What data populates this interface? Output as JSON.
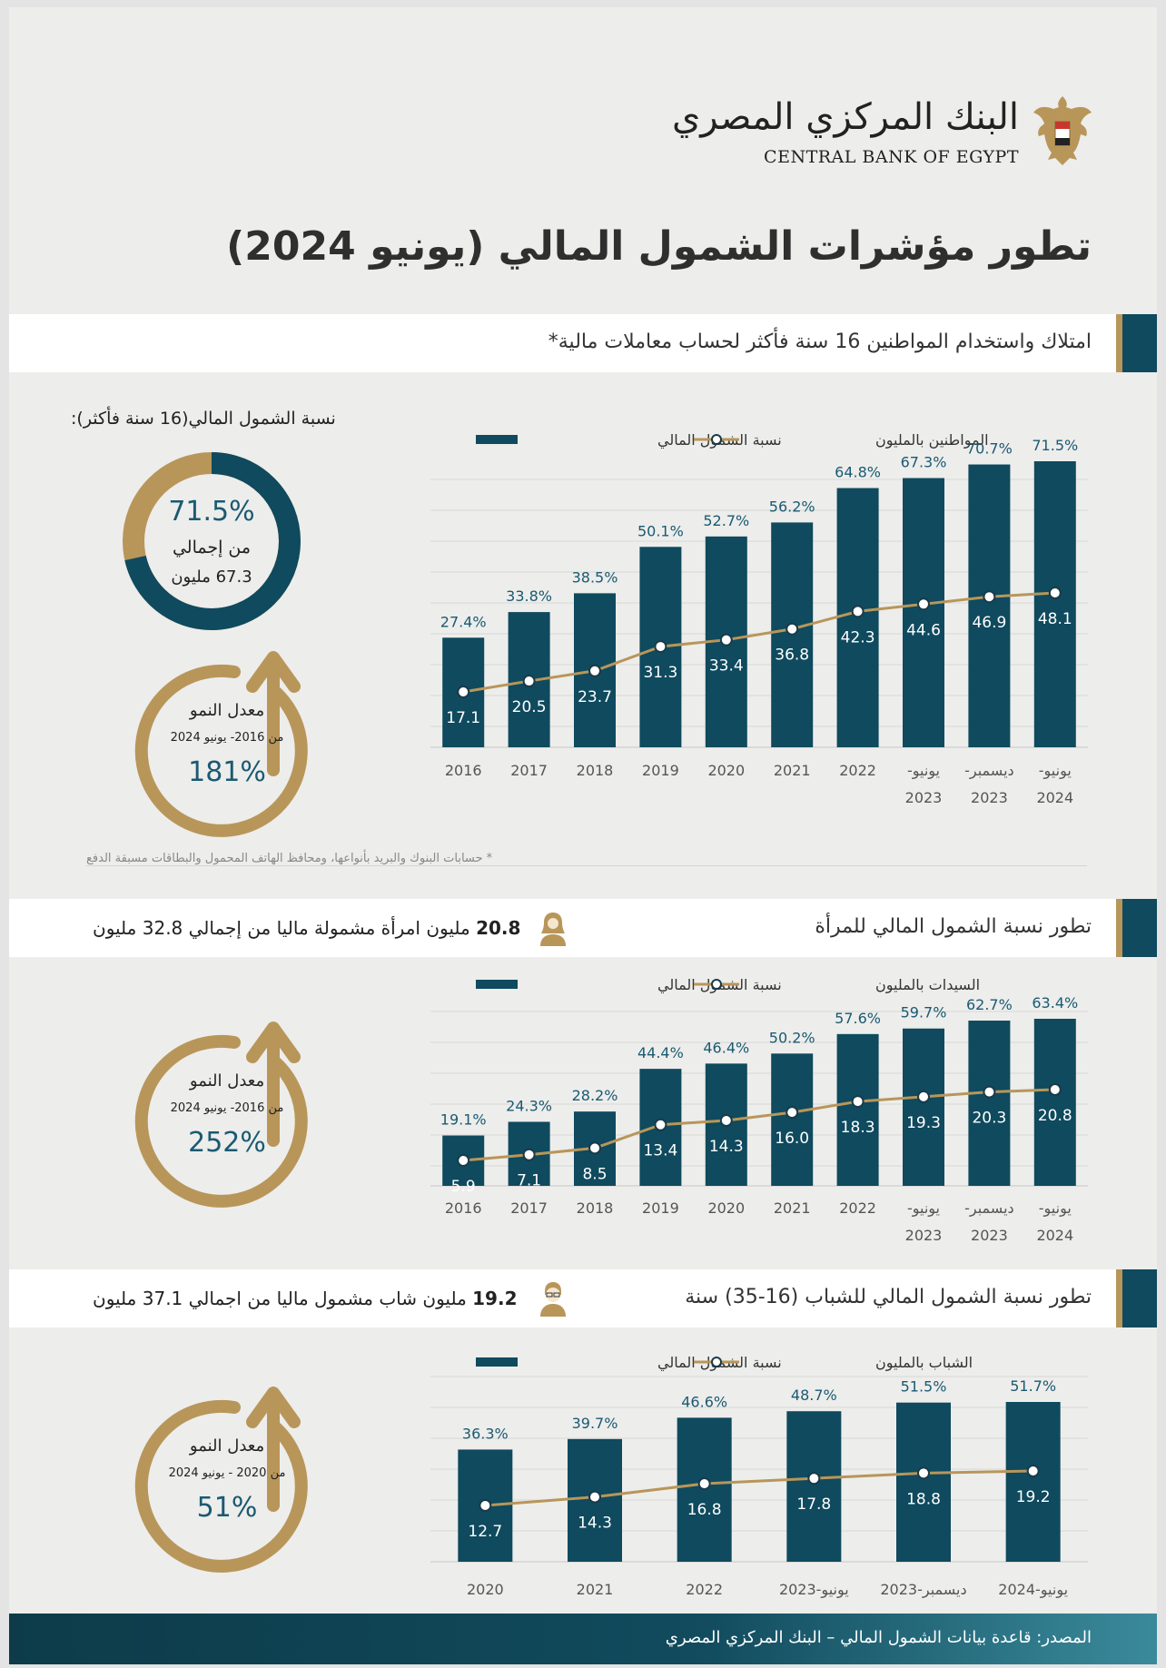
{
  "header": {
    "logo_ar": "البنك المركزي المصري",
    "logo_en": "CENTRAL BANK OF EGYPT",
    "title": "تطور مؤشرات الشمول المالي (يونيو 2024)"
  },
  "section1": {
    "title": "امتلاك واستخدام المواطنين 16 سنة فأكثر لحساب معاملات مالية*",
    "donut_title": "نسبة الشمول المالي(16 سنة فأكثر):",
    "donut_value": "71.5%",
    "donut_fraction": 0.715,
    "donut_line1": "من إجمالي",
    "donut_line2": "67.3 مليون",
    "growth_label": "معدل النمو",
    "growth_period": "من 2016- يونيو 2024",
    "growth_value": "181%",
    "footnote": "* حسابات البنوك والبريد بأنواعها، ومحافظ الهاتف المحمول والبطاقات مسبقة الدفع"
  },
  "section2": {
    "title": "تطور نسبة الشمول المالي للمرأة",
    "summary_bold": "20.8",
    "summary_text": " مليون امرأة مشمولة ماليا من إجمالي 32.8 مليون",
    "growth_label": "معدل النمو",
    "growth_period": "من 2016- يونيو 2024",
    "growth_value": "252%"
  },
  "section3": {
    "title": "تطور نسبة الشمول المالي للشباب (16-35) سنة",
    "summary_bold": "19.2",
    "summary_text": " مليون شاب مشمول ماليا من اجمالي 37.1 مليون",
    "growth_label": "معدل النمو",
    "growth_period": "من 2020 - يونيو 2024",
    "growth_value": "51%"
  },
  "footer": {
    "source": "المصدر: قاعدة بيانات الشمول المالي – البنك المركزي المصري"
  },
  "colors": {
    "teal": "#0f4a5e",
    "gold": "#b8965a",
    "bar_label": "#1a5a72"
  },
  "chart_data": [
    {
      "type": "bar",
      "categories": [
        [
          "2016"
        ],
        [
          "2017"
        ],
        [
          "2018"
        ],
        [
          "2019"
        ],
        [
          "2020"
        ],
        [
          "2021"
        ],
        [
          "2022"
        ],
        [
          "يونيو-",
          "2023"
        ],
        [
          "ديسمبر-",
          "2023"
        ],
        [
          "يونيو-",
          "2024"
        ]
      ],
      "series": [
        {
          "name": "نسبة الشمول المالي",
          "type": "bar",
          "values": [
            27.4,
            33.8,
            38.5,
            50.1,
            52.7,
            56.2,
            64.8,
            67.3,
            70.7,
            71.5
          ]
        },
        {
          "name": "المواطنين بالمليون",
          "type": "line",
          "values": [
            17.1,
            20.5,
            23.7,
            31.3,
            33.4,
            36.8,
            42.3,
            44.6,
            46.9,
            48.1
          ]
        }
      ]
    },
    {
      "type": "bar",
      "categories": [
        [
          "2016"
        ],
        [
          "2017"
        ],
        [
          "2018"
        ],
        [
          "2019"
        ],
        [
          "2020"
        ],
        [
          "2021"
        ],
        [
          "2022"
        ],
        [
          "يونيو-",
          "2023"
        ],
        [
          "ديسمبر-",
          "2023"
        ],
        [
          "يونيو-",
          "2024"
        ]
      ],
      "series": [
        {
          "name": "نسبة الشمول المالي",
          "type": "bar",
          "values": [
            19.1,
            24.3,
            28.2,
            44.4,
            46.4,
            50.2,
            57.6,
            59.7,
            62.7,
            63.4
          ]
        },
        {
          "name": "السيدات بالمليون",
          "type": "line",
          "values": [
            5.9,
            7.1,
            8.5,
            13.4,
            14.3,
            16.0,
            18.3,
            19.3,
            20.3,
            20.8
          ]
        }
      ]
    },
    {
      "type": "bar",
      "categories": [
        [
          "2020"
        ],
        [
          "2021"
        ],
        [
          "2022"
        ],
        [
          "يونيو-2023"
        ],
        [
          "ديسمبر-2023"
        ],
        [
          "يونيو-2024"
        ]
      ],
      "series": [
        {
          "name": "نسبة الشمول المالي",
          "type": "bar",
          "values": [
            36.3,
            39.7,
            46.6,
            48.7,
            51.5,
            51.7
          ]
        },
        {
          "name": "الشباب بالمليون",
          "type": "line",
          "values": [
            12.7,
            14.3,
            16.8,
            17.8,
            18.8,
            19.2
          ]
        }
      ]
    }
  ]
}
